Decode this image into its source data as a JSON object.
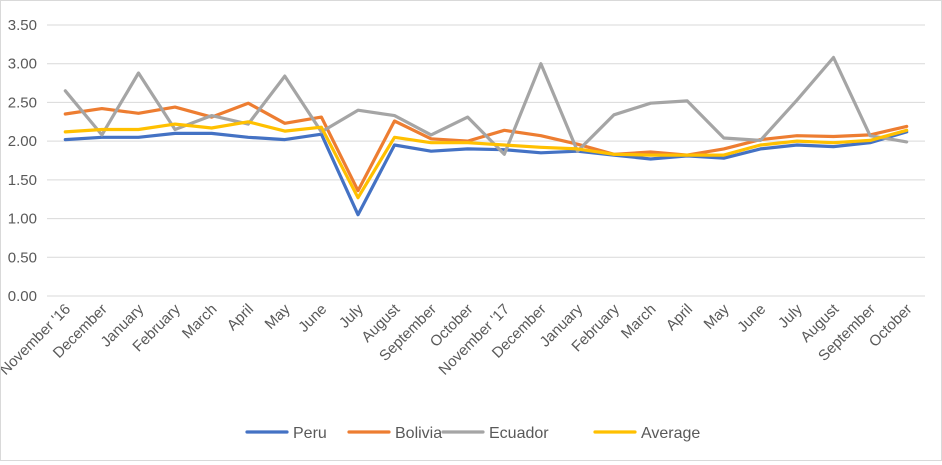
{
  "chart_data": {
    "type": "line",
    "title": "",
    "xlabel": "",
    "ylabel": "",
    "ylim": [
      0,
      3.5
    ],
    "yticks": [
      "0.00",
      "0.50",
      "1.00",
      "1.50",
      "2.00",
      "2.50",
      "3.00",
      "3.50"
    ],
    "grid": true,
    "legend_position": "bottom",
    "categories": [
      "November '16",
      "December",
      "January",
      "February",
      "March",
      "April",
      "May",
      "June",
      "July",
      "August",
      "September",
      "October",
      "November '17",
      "December",
      "January",
      "February",
      "March",
      "April",
      "May",
      "June",
      "July",
      "August",
      "September",
      "October"
    ],
    "series": [
      {
        "name": "Peru",
        "color": "#4472C4",
        "values": [
          2.02,
          2.05,
          2.05,
          2.1,
          2.1,
          2.05,
          2.02,
          2.09,
          1.05,
          1.95,
          1.87,
          1.9,
          1.89,
          1.85,
          1.87,
          1.82,
          1.77,
          1.81,
          1.78,
          1.9,
          1.95,
          1.93,
          1.98,
          2.12
        ]
      },
      {
        "name": "Bolivia",
        "color": "#ED7D31",
        "values": [
          2.35,
          2.42,
          2.36,
          2.44,
          2.31,
          2.49,
          2.23,
          2.31,
          1.36,
          2.26,
          2.03,
          2.0,
          2.14,
          2.07,
          1.96,
          1.83,
          1.86,
          1.82,
          1.9,
          2.02,
          2.07,
          2.06,
          2.08,
          2.19
        ]
      },
      {
        "name": "Ecuador",
        "color": "#A5A5A5",
        "values": [
          2.65,
          2.08,
          2.88,
          2.15,
          2.33,
          2.22,
          2.84,
          2.12,
          2.4,
          2.33,
          2.08,
          2.31,
          1.83,
          3.0,
          1.87,
          2.34,
          2.49,
          2.52,
          2.04,
          2.01,
          2.53,
          3.08,
          2.07,
          1.99
        ]
      },
      {
        "name": "Average",
        "color": "#FFC000",
        "values": [
          2.12,
          2.15,
          2.15,
          2.22,
          2.17,
          2.25,
          2.13,
          2.18,
          1.27,
          2.05,
          1.98,
          1.98,
          1.95,
          1.92,
          1.9,
          1.83,
          1.82,
          1.82,
          1.82,
          1.95,
          2.0,
          1.98,
          2.01,
          2.14
        ]
      }
    ]
  }
}
